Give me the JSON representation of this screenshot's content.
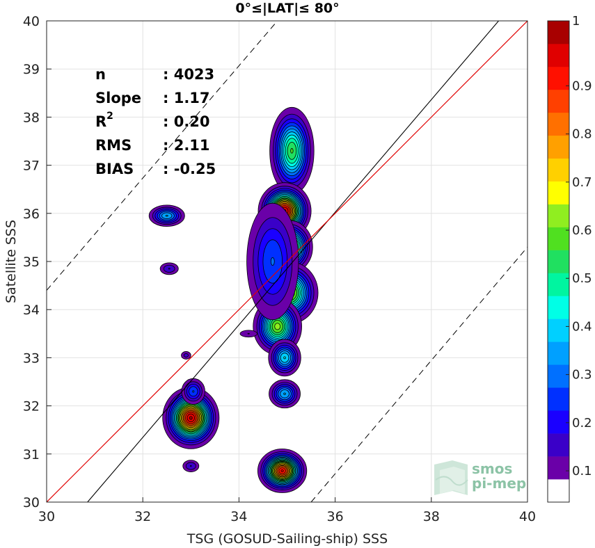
{
  "chart_data": {
    "type": "contour",
    "title": "0°≤|LAT|≤ 80°",
    "xlabel": "TSG (GOSUD-Sailing-ship) SSS",
    "ylabel": "Satellite SSS",
    "xlim": [
      30,
      40
    ],
    "ylim": [
      30,
      40
    ],
    "xticks": [
      30,
      32,
      34,
      36,
      38,
      40
    ],
    "yticks": [
      30,
      31,
      32,
      33,
      34,
      35,
      36,
      37,
      38,
      39,
      40
    ],
    "grid": true,
    "stats": [
      {
        "label": "n",
        "value": ": 4023"
      },
      {
        "label": "Slope",
        "value": ": 1.17"
      },
      {
        "label": "R",
        "sup": "2",
        "value": ": 0.20"
      },
      {
        "label": "RMS",
        "value": ": 2.11"
      },
      {
        "label": "BIAS",
        "value": ": -0.25"
      }
    ],
    "lines": {
      "identity": {
        "color": "#e00000",
        "from": [
          30,
          30
        ],
        "to": [
          40,
          40
        ]
      },
      "fit": {
        "color": "#000000",
        "from": [
          30.85,
          30
        ],
        "to": [
          39.4,
          40
        ]
      },
      "bounds": [
        {
          "style": "dashed",
          "from": [
            30,
            34.4
          ],
          "to": [
            34.8,
            40
          ]
        },
        {
          "style": "dashed",
          "from": [
            35.5,
            30
          ],
          "to": [
            40,
            35.3
          ]
        }
      ]
    },
    "density_clusters": [
      {
        "x": 35.1,
        "y": 37.3,
        "sx": 0.28,
        "sy": 0.55,
        "peak": 0.55
      },
      {
        "x": 34.95,
        "y": 36.05,
        "sx": 0.3,
        "sy": 0.32,
        "peak": 1.0
      },
      {
        "x": 35.05,
        "y": 35.3,
        "sx": 0.28,
        "sy": 0.32,
        "peak": 0.7
      },
      {
        "x": 35.05,
        "y": 34.35,
        "sx": 0.35,
        "sy": 0.38,
        "peak": 0.65
      },
      {
        "x": 34.8,
        "y": 33.65,
        "sx": 0.3,
        "sy": 0.35,
        "peak": 0.62
      },
      {
        "x": 34.95,
        "y": 33.0,
        "sx": 0.22,
        "sy": 0.25,
        "peak": 0.4
      },
      {
        "x": 34.7,
        "y": 35.0,
        "sx": 0.4,
        "sy": 0.9,
        "peak": 0.25
      },
      {
        "x": 34.2,
        "y": 33.5,
        "sx": 0.2,
        "sy": 0.08,
        "peak": 0.1
      },
      {
        "x": 34.95,
        "y": 32.25,
        "sx": 0.22,
        "sy": 0.2,
        "peak": 0.35
      },
      {
        "x": 34.9,
        "y": 30.65,
        "sx": 0.28,
        "sy": 0.25,
        "peak": 0.95
      },
      {
        "x": 33.0,
        "y": 31.75,
        "sx": 0.32,
        "sy": 0.35,
        "peak": 1.0
      },
      {
        "x": 33.05,
        "y": 32.3,
        "sx": 0.18,
        "sy": 0.2,
        "peak": 0.25
      },
      {
        "x": 32.5,
        "y": 35.95,
        "sx": 0.25,
        "sy": 0.15,
        "peak": 0.35
      },
      {
        "x": 32.55,
        "y": 34.85,
        "sx": 0.17,
        "sy": 0.11,
        "peak": 0.15
      },
      {
        "x": 32.9,
        "y": 33.05,
        "sx": 0.1,
        "sy": 0.08,
        "peak": 0.12
      },
      {
        "x": 33.0,
        "y": 30.75,
        "sx": 0.15,
        "sy": 0.11,
        "peak": 0.15
      }
    ],
    "colorbar": {
      "range": [
        0,
        1
      ],
      "ticks": [
        0.1,
        0.2,
        0.3,
        0.4,
        0.5,
        0.6,
        0.7,
        0.8,
        0.9,
        1
      ],
      "tick_labels": [
        "0.1",
        "0.2",
        "0.3",
        "0.4",
        "0.5",
        "0.6",
        "0.7",
        "0.8",
        "0.9",
        "1"
      ],
      "levels": [
        0.05,
        0.1,
        0.15,
        0.2,
        0.25,
        0.3,
        0.35,
        0.4,
        0.45,
        0.5,
        0.55,
        0.6,
        0.65,
        0.7,
        0.75,
        0.8,
        0.85,
        0.9,
        0.95,
        1.0
      ],
      "colors": [
        "#ffffff",
        "#6a00a8",
        "#3a00c8",
        "#1a00ff",
        "#0030ff",
        "#0070ff",
        "#00a0ff",
        "#00d0ff",
        "#00ffe6",
        "#00f5a0",
        "#20e060",
        "#50e020",
        "#90ee20",
        "#ffff00",
        "#ffd000",
        "#ffa000",
        "#ff7000",
        "#ff4000",
        "#ff1000",
        "#e00000",
        "#a80000"
      ]
    }
  },
  "logo": {
    "line1": "smos",
    "line2": "pi-mep"
  }
}
